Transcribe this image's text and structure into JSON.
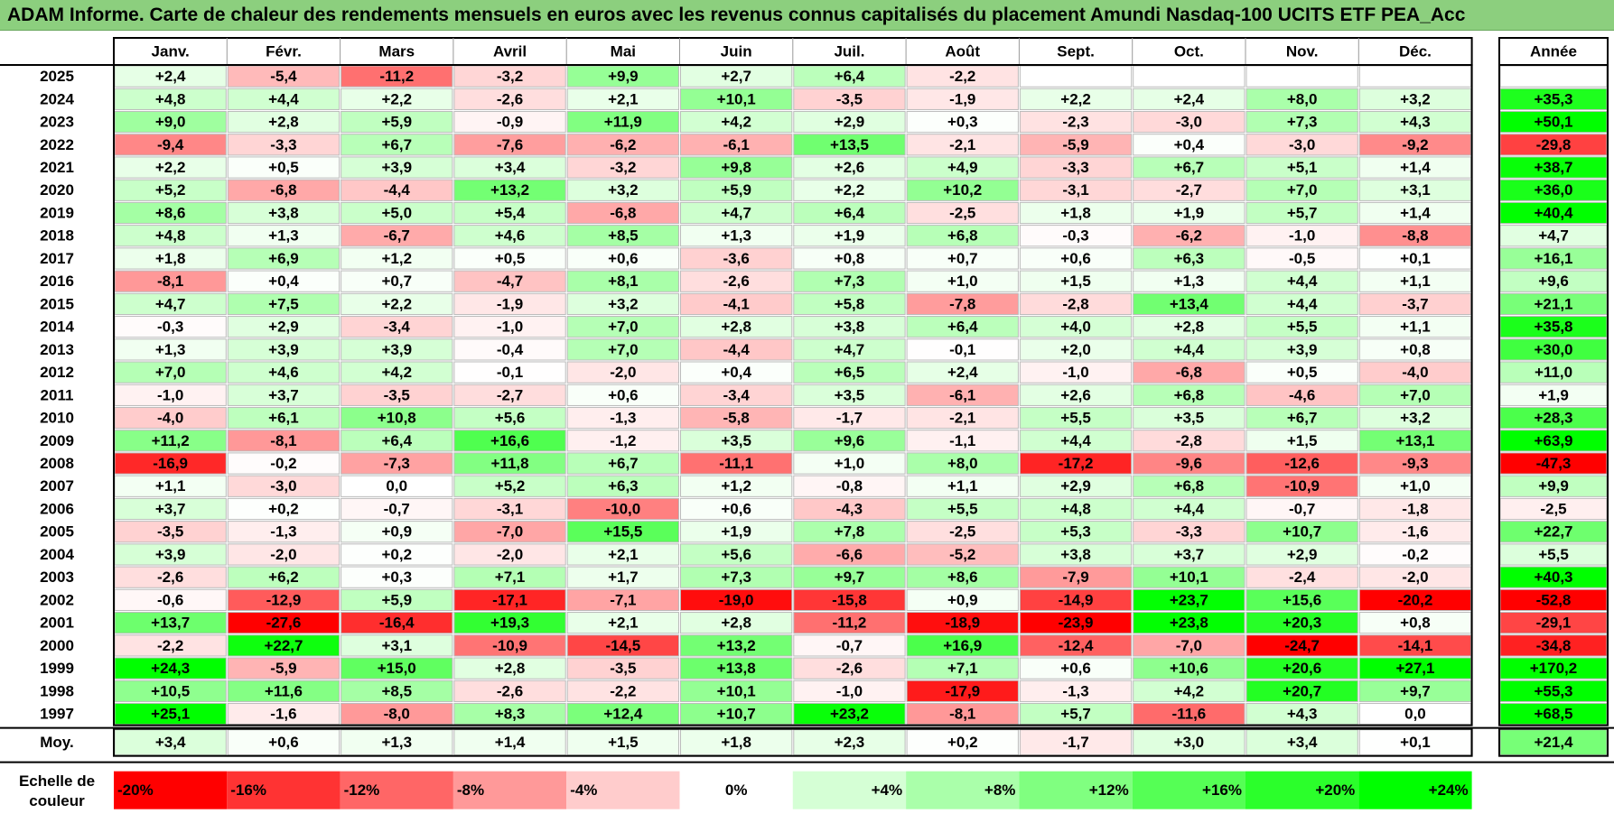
{
  "title": "ADAM Informe. Carte de chaleur des rendements mensuels en euros avec les revenus connus capitalisés du placement Amundi Nasdaq-100 UCITS ETF PEA_Acc",
  "colors": {
    "negative": "#ff0000",
    "neutral": "#ffffff",
    "positive": "#00ff00",
    "title_bg": "#8ccf7e"
  },
  "chart_data": {
    "type": "heatmap",
    "title": "ADAM Informe. Carte de chaleur des rendements mensuels en euros avec les revenus connus capitalisés du placement Amundi Nasdaq-100 UCITS ETF PEA_Acc",
    "columns": [
      "Janv.",
      "Févr.",
      "Mars",
      "Avril",
      "Mai",
      "Juin",
      "Juil.",
      "Août",
      "Sept.",
      "Oct.",
      "Nov.",
      "Déc."
    ],
    "year_header": "Année",
    "rows": [
      {
        "label": "2025",
        "values": [
          "+2,4",
          "-5,4",
          "-11,2",
          "-3,2",
          "+9,9",
          "+2,7",
          "+6,4",
          "-2,2",
          "",
          "",
          "",
          ""
        ],
        "year": ""
      },
      {
        "label": "2024",
        "values": [
          "+4,8",
          "+4,4",
          "+2,2",
          "-2,6",
          "+2,1",
          "+10,1",
          "-3,5",
          "-1,9",
          "+2,2",
          "+2,4",
          "+8,0",
          "+3,2"
        ],
        "year": "+35,3"
      },
      {
        "label": "2023",
        "values": [
          "+9,0",
          "+2,8",
          "+5,9",
          "-0,9",
          "+11,9",
          "+4,2",
          "+2,9",
          "+0,3",
          "-2,3",
          "-3,0",
          "+7,3",
          "+4,3"
        ],
        "year": "+50,1"
      },
      {
        "label": "2022",
        "values": [
          "-9,4",
          "-3,3",
          "+6,7",
          "-7,6",
          "-6,2",
          "-6,1",
          "+13,5",
          "-2,1",
          "-5,9",
          "+0,4",
          "-3,0",
          "-9,2"
        ],
        "year": "-29,8"
      },
      {
        "label": "2021",
        "values": [
          "+2,2",
          "+0,5",
          "+3,9",
          "+3,4",
          "-3,2",
          "+9,8",
          "+2,6",
          "+4,9",
          "-3,3",
          "+6,7",
          "+5,1",
          "+1,4"
        ],
        "year": "+38,7"
      },
      {
        "label": "2020",
        "values": [
          "+5,2",
          "-6,8",
          "-4,4",
          "+13,2",
          "+3,2",
          "+5,9",
          "+2,2",
          "+10,2",
          "-3,1",
          "-2,7",
          "+7,0",
          "+3,1"
        ],
        "year": "+36,0"
      },
      {
        "label": "2019",
        "values": [
          "+8,6",
          "+3,8",
          "+5,0",
          "+5,4",
          "-6,8",
          "+4,7",
          "+6,4",
          "-2,5",
          "+1,8",
          "+1,9",
          "+5,7",
          "+1,4"
        ],
        "year": "+40,4"
      },
      {
        "label": "2018",
        "values": [
          "+4,8",
          "+1,3",
          "-6,7",
          "+4,6",
          "+8,5",
          "+1,3",
          "+1,9",
          "+6,8",
          "-0,3",
          "-6,2",
          "-1,0",
          "-8,8"
        ],
        "year": "+4,7"
      },
      {
        "label": "2017",
        "values": [
          "+1,8",
          "+6,9",
          "+1,2",
          "+0,5",
          "+0,6",
          "-3,6",
          "+0,8",
          "+0,7",
          "+0,6",
          "+6,3",
          "-0,5",
          "+0,1"
        ],
        "year": "+16,1"
      },
      {
        "label": "2016",
        "values": [
          "-8,1",
          "+0,4",
          "+0,7",
          "-4,7",
          "+8,1",
          "-2,6",
          "+7,3",
          "+1,0",
          "+1,5",
          "+1,3",
          "+4,4",
          "+1,1"
        ],
        "year": "+9,6"
      },
      {
        "label": "2015",
        "values": [
          "+4,7",
          "+7,5",
          "+2,2",
          "-1,9",
          "+3,2",
          "-4,1",
          "+5,8",
          "-7,8",
          "-2,8",
          "+13,4",
          "+4,4",
          "-3,7"
        ],
        "year": "+21,1"
      },
      {
        "label": "2014",
        "values": [
          "-0,3",
          "+2,9",
          "-3,4",
          "-1,0",
          "+7,0",
          "+2,8",
          "+3,8",
          "+6,4",
          "+4,0",
          "+2,8",
          "+5,5",
          "+1,1"
        ],
        "year": "+35,8"
      },
      {
        "label": "2013",
        "values": [
          "+1,3",
          "+3,9",
          "+3,9",
          "-0,4",
          "+7,0",
          "-4,4",
          "+4,7",
          "-0,1",
          "+2,0",
          "+4,4",
          "+3,9",
          "+0,8"
        ],
        "year": "+30,0"
      },
      {
        "label": "2012",
        "values": [
          "+7,0",
          "+4,6",
          "+4,2",
          "-0,1",
          "-2,0",
          "+0,4",
          "+6,5",
          "+2,4",
          "-1,0",
          "-6,8",
          "+0,5",
          "-4,0"
        ],
        "year": "+11,0"
      },
      {
        "label": "2011",
        "values": [
          "-1,0",
          "+3,7",
          "-3,5",
          "-2,7",
          "+0,6",
          "-3,4",
          "+3,5",
          "-6,1",
          "+2,6",
          "+6,8",
          "-4,6",
          "+7,0"
        ],
        "year": "+1,9"
      },
      {
        "label": "2010",
        "values": [
          "-4,0",
          "+6,1",
          "+10,8",
          "+5,6",
          "-1,3",
          "-5,8",
          "-1,7",
          "-2,1",
          "+5,5",
          "+3,5",
          "+6,7",
          "+3,2"
        ],
        "year": "+28,3"
      },
      {
        "label": "2009",
        "values": [
          "+11,2",
          "-8,1",
          "+6,4",
          "+16,6",
          "-1,2",
          "+3,5",
          "+9,6",
          "-1,1",
          "+4,4",
          "-2,8",
          "+1,5",
          "+13,1"
        ],
        "year": "+63,9"
      },
      {
        "label": "2008",
        "values": [
          "-16,9",
          "-0,2",
          "-7,3",
          "+11,8",
          "+6,7",
          "-11,1",
          "+1,0",
          "+8,0",
          "-17,2",
          "-9,6",
          "-12,6",
          "-9,3"
        ],
        "year": "-47,3"
      },
      {
        "label": "2007",
        "values": [
          "+1,1",
          "-3,0",
          "0,0",
          "+5,2",
          "+6,3",
          "+1,2",
          "-0,8",
          "+1,1",
          "+2,9",
          "+6,8",
          "-10,9",
          "+1,0"
        ],
        "year": "+9,9"
      },
      {
        "label": "2006",
        "values": [
          "+3,7",
          "+0,2",
          "-0,7",
          "-3,1",
          "-10,0",
          "+0,6",
          "-4,3",
          "+5,5",
          "+4,8",
          "+4,4",
          "-0,7",
          "-1,8"
        ],
        "year": "-2,5"
      },
      {
        "label": "2005",
        "values": [
          "-3,5",
          "-1,3",
          "+0,9",
          "-7,0",
          "+15,5",
          "+1,9",
          "+7,8",
          "-2,5",
          "+5,3",
          "-3,3",
          "+10,7",
          "-1,6"
        ],
        "year": "+22,7"
      },
      {
        "label": "2004",
        "values": [
          "+3,9",
          "-2,0",
          "+0,2",
          "-2,0",
          "+2,1",
          "+5,6",
          "-6,6",
          "-5,2",
          "+3,8",
          "+3,7",
          "+2,9",
          "-0,2"
        ],
        "year": "+5,5"
      },
      {
        "label": "2003",
        "values": [
          "-2,6",
          "+6,2",
          "+0,3",
          "+7,1",
          "+1,7",
          "+7,3",
          "+9,7",
          "+8,6",
          "-7,9",
          "+10,1",
          "-2,4",
          "-2,0"
        ],
        "year": "+40,3"
      },
      {
        "label": "2002",
        "values": [
          "-0,6",
          "-12,9",
          "+5,9",
          "-17,1",
          "-7,1",
          "-19,0",
          "-15,8",
          "+0,9",
          "-14,9",
          "+23,7",
          "+15,6",
          "-20,2"
        ],
        "year": "-52,8"
      },
      {
        "label": "2001",
        "values": [
          "+13,7",
          "-27,6",
          "-16,4",
          "+19,3",
          "+2,1",
          "+2,8",
          "-11,2",
          "-18,9",
          "-23,9",
          "+23,8",
          "+20,3",
          "+0,8"
        ],
        "year": "-29,1"
      },
      {
        "label": "2000",
        "values": [
          "-2,2",
          "+22,7",
          "+3,1",
          "-10,9",
          "-14,5",
          "+13,2",
          "-0,7",
          "+16,9",
          "-12,4",
          "-7,0",
          "-24,7",
          "-14,1"
        ],
        "year": "-34,8"
      },
      {
        "label": "1999",
        "values": [
          "+24,3",
          "-5,9",
          "+15,0",
          "+2,8",
          "-3,5",
          "+13,8",
          "-2,6",
          "+7,1",
          "+0,6",
          "+10,6",
          "+20,6",
          "+27,1"
        ],
        "year": "+170,2"
      },
      {
        "label": "1998",
        "values": [
          "+10,5",
          "+11,6",
          "+8,5",
          "-2,6",
          "-2,2",
          "+10,1",
          "-1,0",
          "-17,9",
          "-1,3",
          "+4,2",
          "+20,7",
          "+9,7"
        ],
        "year": "+55,3"
      },
      {
        "label": "1997",
        "values": [
          "+25,1",
          "-1,6",
          "-8,0",
          "+8,3",
          "+12,4",
          "+10,7",
          "+23,2",
          "-8,1",
          "+5,7",
          "-11,6",
          "+4,3",
          "0,0"
        ],
        "year": "+68,5"
      }
    ],
    "average": {
      "label": "Moy.",
      "values": [
        "+3,4",
        "+0,6",
        "+1,3",
        "+1,4",
        "+1,5",
        "+1,8",
        "+2,3",
        "+0,2",
        "-1,7",
        "+3,0",
        "+3,4",
        "+0,1"
      ],
      "year": "+21,4"
    },
    "scale": {
      "label_line1": "Echelle de",
      "label_line2": "couleur",
      "steps": [
        "-20%",
        "-16%",
        "-12%",
        "-8%",
        "-4%",
        "0%",
        "+4%",
        "+8%",
        "+12%",
        "+16%",
        "+20%",
        "+24%"
      ],
      "step_values": [
        -20,
        -16,
        -12,
        -8,
        -4,
        0,
        4,
        8,
        12,
        16,
        20,
        24
      ]
    }
  }
}
